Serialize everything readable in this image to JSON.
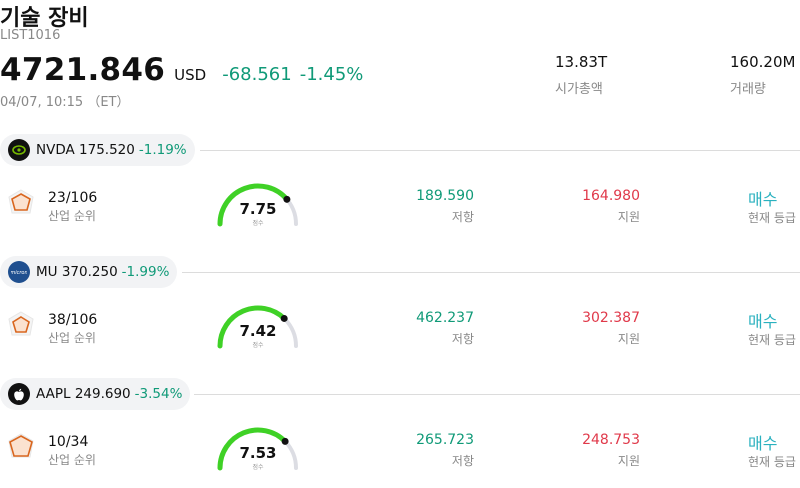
{
  "header": {
    "title": "기술 장비",
    "code": "LIST1016",
    "price": "4721.846",
    "currency": "USD",
    "change": "-68.561",
    "change_pct": "-1.45%",
    "timestamp": "04/07, 10:15 （ET）"
  },
  "stats": {
    "market_cap_value": "13.83T",
    "market_cap_label": "시가총액",
    "volume_value": "160.20M",
    "volume_label": "거래량"
  },
  "colors": {
    "down_green": "#109a78",
    "support_red": "#e0394a",
    "signal_teal": "#2ab1bf",
    "gauge_green": "#3fd126"
  },
  "stocks": [
    {
      "ticker": "NVDA",
      "price": "175.520",
      "change_pct": "-1.19%",
      "logo": "nvidia-logo",
      "rank": "23/106",
      "rank_label": "산업 순위",
      "score": "7.75",
      "score_fraction": 0.775,
      "score_label": "점수",
      "resistance": "189.590",
      "resistance_label": "저항",
      "support": "164.980",
      "support_label": "지원",
      "signal": "매수",
      "signal_label": "현재 등급"
    },
    {
      "ticker": "MU",
      "price": "370.250",
      "change_pct": "-1.99%",
      "logo": "micron-logo",
      "rank": "38/106",
      "rank_label": "산업 순위",
      "score": "7.42",
      "score_fraction": 0.742,
      "score_label": "점수",
      "resistance": "462.237",
      "resistance_label": "저항",
      "support": "302.387",
      "support_label": "지원",
      "signal": "매수",
      "signal_label": "현재 등급"
    },
    {
      "ticker": "AAPL",
      "price": "249.690",
      "change_pct": "-3.54%",
      "logo": "apple-logo",
      "rank": "10/34",
      "rank_label": "산업 순위",
      "score": "7.53",
      "score_fraction": 0.753,
      "score_label": "점수",
      "resistance": "265.723",
      "resistance_label": "저항",
      "support": "248.753",
      "support_label": "지원",
      "signal": "매수",
      "signal_label": "현재 등급"
    }
  ]
}
